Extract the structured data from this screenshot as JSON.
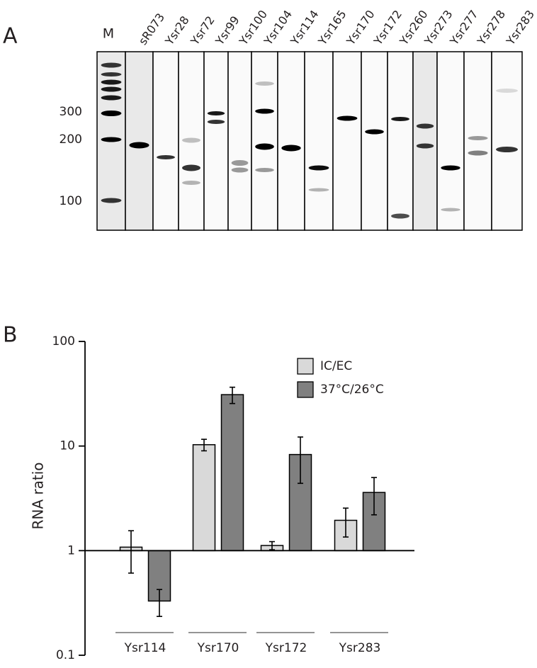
{
  "panel_a": {
    "letter": "A",
    "marker_lane": "M",
    "lanes": [
      "sR073",
      "Ysr28",
      "Ysr72",
      "Ysr99",
      "Ysr100",
      "Ysr104",
      "Ysr114",
      "Ysr165",
      "Ysr170",
      "Ysr172",
      "Ysr260",
      "Ysr273",
      "Ysr277",
      "Ysr278",
      "Ysr283"
    ],
    "size_labels": [
      "300",
      "200",
      "100"
    ]
  },
  "chart_data": {
    "type": "bar",
    "panel_letter": "B",
    "ylabel": "RNA ratio",
    "categories": [
      "Ysr114",
      "Ysr170",
      "Ysr172",
      "Ysr283"
    ],
    "series": [
      {
        "name": "IC/EC",
        "color": "#d9d9d9",
        "values": [
          1.08,
          10.3,
          1.12,
          1.95
        ],
        "errors": [
          0.47,
          1.3,
          0.1,
          0.6
        ]
      },
      {
        "name": "37°C/26°C",
        "color": "#808080",
        "values": [
          0.33,
          31,
          8.3,
          3.6
        ],
        "errors": [
          0.095,
          5.5,
          3.9,
          1.4
        ]
      }
    ],
    "log_scale": true,
    "baseline": 1,
    "ylim": [
      0.1,
      100
    ],
    "yticks": [
      0.1,
      1,
      10,
      100
    ],
    "legend": "upper right"
  }
}
